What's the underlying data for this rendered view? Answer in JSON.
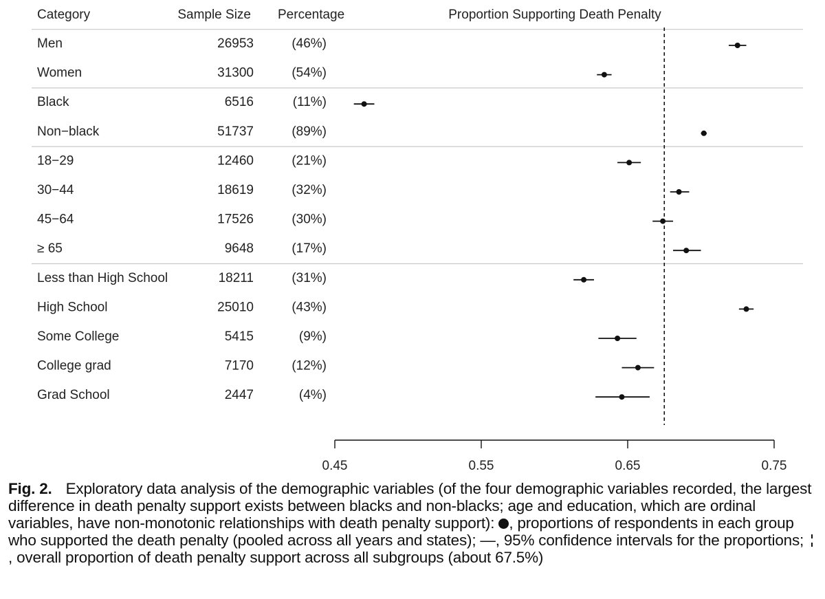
{
  "chart_data": {
    "type": "forest",
    "title": "Proportion Supporting Death Penalty",
    "columns": {
      "category": "Category",
      "sample_size": "Sample Size",
      "percentage": "Percentage"
    },
    "groups": [
      {
        "rows": [
          {
            "category": "Men",
            "sample_size": "26953",
            "percentage": "(46%)",
            "estimate": 0.725,
            "ci": [
              0.719,
              0.731
            ]
          },
          {
            "category": "Women",
            "sample_size": "31300",
            "percentage": "(54%)",
            "estimate": 0.634,
            "ci": [
              0.629,
              0.639
            ]
          }
        ]
      },
      {
        "rows": [
          {
            "category": "Black",
            "sample_size": "6516",
            "percentage": "(11%)",
            "estimate": 0.47,
            "ci": [
              0.463,
              0.477
            ]
          },
          {
            "category": "Non−black",
            "sample_size": "51737",
            "percentage": "(89%)",
            "estimate": 0.702,
            "ci": [
              0.7,
              0.704
            ]
          }
        ]
      },
      {
        "rows": [
          {
            "category": "18−29",
            "sample_size": "12460",
            "percentage": "(21%)",
            "estimate": 0.651,
            "ci": [
              0.643,
              0.659
            ]
          },
          {
            "category": "30−44",
            "sample_size": "18619",
            "percentage": "(32%)",
            "estimate": 0.685,
            "ci": [
              0.679,
              0.692
            ]
          },
          {
            "category": "45−64",
            "sample_size": "17526",
            "percentage": "(30%)",
            "estimate": 0.674,
            "ci": [
              0.667,
              0.681
            ]
          },
          {
            "category": "≥ 65",
            "sample_size": "9648",
            "percentage": "(17%)",
            "estimate": 0.69,
            "ci": [
              0.681,
              0.7
            ]
          }
        ]
      },
      {
        "rows": [
          {
            "category": "Less than High School",
            "sample_size": "18211",
            "percentage": "(31%)",
            "estimate": 0.62,
            "ci": [
              0.613,
              0.627
            ]
          },
          {
            "category": "High School",
            "sample_size": "25010",
            "percentage": "(43%)",
            "estimate": 0.731,
            "ci": [
              0.726,
              0.736
            ]
          },
          {
            "category": "Some College",
            "sample_size": "5415",
            "percentage": "(9%)",
            "estimate": 0.643,
            "ci": [
              0.63,
              0.656
            ]
          },
          {
            "category": "College grad",
            "sample_size": "7170",
            "percentage": "(12%)",
            "estimate": 0.657,
            "ci": [
              0.646,
              0.668
            ]
          },
          {
            "category": "Grad School",
            "sample_size": "2447",
            "percentage": "(4%)",
            "estimate": 0.646,
            "ci": [
              0.628,
              0.665
            ]
          }
        ]
      }
    ],
    "reference_line": 0.675,
    "xlim": [
      0.45,
      0.75
    ],
    "x_ticks": [
      0.45,
      0.55,
      0.65,
      0.75
    ],
    "x_tick_labels": [
      "0.45",
      "0.55",
      "0.65",
      "0.75"
    ]
  },
  "caption": {
    "label": "Fig. 2.",
    "part1": "Exploratory data analysis of the demographic variables (of the four demographic variables recorded, the largest difference in death penalty support exists between blacks and non-blacks; age and education, which are ordinal variables, have non-monotonic relationships with death penalty support):",
    "part2": ", proportions of respondents in each group who supported the death penalty (pooled across all years and states); —, 95% confidence intervals for the proportions;",
    "part3": ", overall proportion of death penalty support across all subgroups (about 67.5%)"
  }
}
